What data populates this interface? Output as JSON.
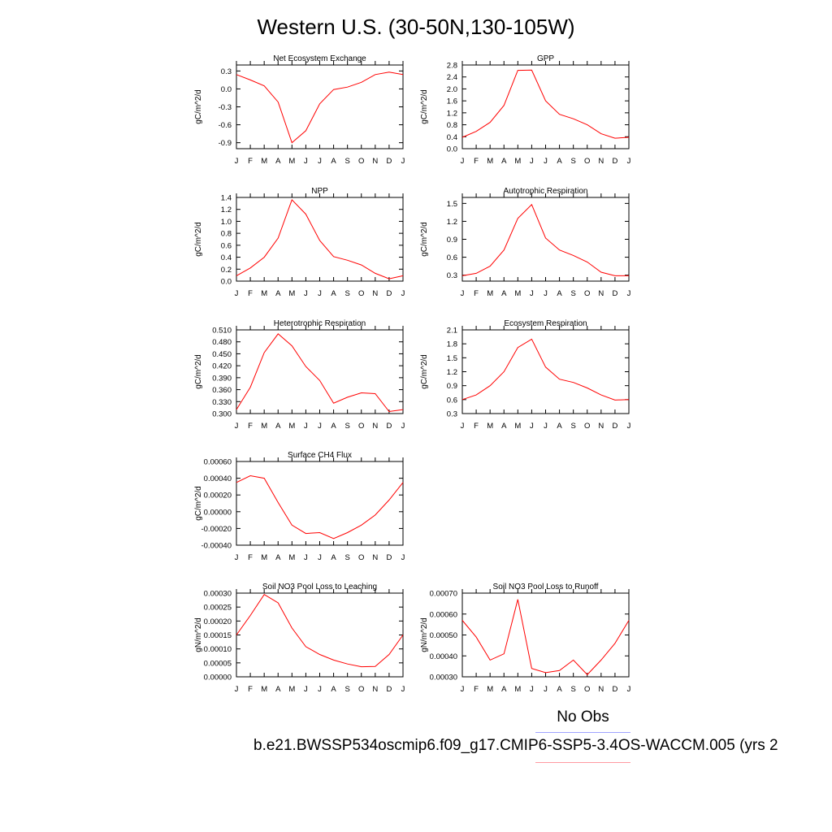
{
  "title": "Western U.S. (30-50N,130-105W)",
  "legend": {
    "obs_label": "No Obs",
    "case_label": "b.e21.BWSSP534oscmip6.f09_g17.CMIP6-SSP5-3.4OS-WACCM.005 (yrs 2",
    "obs_color": "#9fa4ff",
    "case_color": "#ff9aa0"
  },
  "months": [
    "J",
    "F",
    "M",
    "A",
    "M",
    "J",
    "J",
    "A",
    "S",
    "O",
    "N",
    "D",
    "J"
  ],
  "chart_data": [
    {
      "type": "line",
      "title": "Net Ecosystem Exchange",
      "ylabel": "gC/m^2/d",
      "ylim": [
        -1.0,
        0.4
      ],
      "yticks": [
        "0.3",
        "0.0",
        "-0.3",
        "-0.6",
        "-0.9"
      ],
      "ytick_values": [
        0.3,
        0.0,
        -0.3,
        -0.6,
        -0.9
      ],
      "color": "#ff0000",
      "values": [
        0.24,
        0.15,
        0.05,
        -0.22,
        -0.9,
        -0.7,
        -0.25,
        -0.01,
        0.03,
        0.11,
        0.24,
        0.28,
        0.24
      ]
    },
    {
      "type": "line",
      "title": "GPP",
      "ylabel": "gC/m^2/d",
      "ylim": [
        0.0,
        2.8
      ],
      "yticks": [
        "2.8",
        "2.4",
        "2.0",
        "1.6",
        "1.2",
        "0.8",
        "0.4",
        "0.0"
      ],
      "ytick_values": [
        2.8,
        2.4,
        2.0,
        1.6,
        1.2,
        0.8,
        0.4,
        0.0
      ],
      "color": "#ff0000",
      "values": [
        0.38,
        0.58,
        0.88,
        1.45,
        2.62,
        2.63,
        1.6,
        1.15,
        1.0,
        0.8,
        0.5,
        0.35,
        0.38
      ]
    },
    {
      "type": "line",
      "title": "NPP",
      "ylabel": "gC/m^2/d",
      "ylim": [
        0.0,
        1.4
      ],
      "yticks": [
        "1.4",
        "1.2",
        "1.0",
        "0.8",
        "0.6",
        "0.4",
        "0.2",
        "0.0"
      ],
      "ytick_values": [
        1.4,
        1.2,
        1.0,
        0.8,
        0.6,
        0.4,
        0.2,
        0.0
      ],
      "color": "#ff0000",
      "values": [
        0.09,
        0.22,
        0.4,
        0.72,
        1.36,
        1.12,
        0.68,
        0.41,
        0.35,
        0.27,
        0.13,
        0.04,
        0.09
      ]
    },
    {
      "type": "line",
      "title": "Autotrophic Respiration",
      "ylabel": "gC/m^2/d",
      "ylim": [
        0.2,
        1.6
      ],
      "yticks": [
        "1.5",
        "1.2",
        "0.9",
        "0.6",
        "0.3"
      ],
      "ytick_values": [
        1.5,
        1.2,
        0.9,
        0.6,
        0.3
      ],
      "color": "#ff0000",
      "values": [
        0.29,
        0.33,
        0.45,
        0.72,
        1.25,
        1.48,
        0.92,
        0.72,
        0.63,
        0.52,
        0.35,
        0.29,
        0.29
      ]
    },
    {
      "type": "line",
      "title": "Heterotrophic Respiration",
      "ylabel": "gC/m^2/d",
      "ylim": [
        0.3,
        0.51
      ],
      "yticks": [
        "0.510",
        "0.480",
        "0.450",
        "0.420",
        "0.390",
        "0.360",
        "0.330",
        "0.300"
      ],
      "ytick_values": [
        0.51,
        0.48,
        0.45,
        0.42,
        0.39,
        0.36,
        0.33,
        0.3
      ],
      "color": "#ff0000",
      "values": [
        0.31,
        0.366,
        0.453,
        0.5,
        0.47,
        0.418,
        0.383,
        0.326,
        0.341,
        0.352,
        0.35,
        0.305,
        0.31
      ]
    },
    {
      "type": "line",
      "title": "Ecosystem Respiration",
      "ylabel": "gC/m^2/d",
      "ylim": [
        0.3,
        2.1
      ],
      "yticks": [
        "2.1",
        "1.8",
        "1.5",
        "1.2",
        "0.9",
        "0.6",
        "0.3"
      ],
      "ytick_values": [
        2.1,
        1.8,
        1.5,
        1.2,
        0.9,
        0.6,
        0.3
      ],
      "color": "#ff0000",
      "values": [
        0.6,
        0.7,
        0.9,
        1.2,
        1.72,
        1.9,
        1.3,
        1.04,
        0.97,
        0.85,
        0.7,
        0.59,
        0.6
      ]
    },
    {
      "type": "line",
      "title": "Surface CH4 Flux",
      "ylabel": "gC/m^2/d",
      "ylim": [
        -0.0004,
        0.0006
      ],
      "yticks": [
        "0.00060",
        "0.00040",
        "0.00020",
        "0.00000",
        "-0.00020",
        "-0.00040"
      ],
      "ytick_values": [
        0.0006,
        0.0004,
        0.0002,
        0.0,
        -0.0002,
        -0.0004
      ],
      "color": "#ff0000",
      "values": [
        0.00035,
        0.00043,
        0.0004,
        0.00011,
        -0.00016,
        -0.00026,
        -0.00025,
        -0.00032,
        -0.00025,
        -0.00016,
        -4e-05,
        0.00014,
        0.00035
      ]
    },
    {
      "type": "line",
      "title": "Soil NO3 Pool Loss to Leaching",
      "ylabel": "gN/m^2/d",
      "ylim": [
        0.0,
        0.0003
      ],
      "yticks": [
        "0.00030",
        "0.00025",
        "0.00020",
        "0.00015",
        "0.00010",
        "0.00005",
        "0.00000"
      ],
      "ytick_values": [
        0.0003,
        0.00025,
        0.0002,
        0.00015,
        0.0001,
        5e-05,
        0.0
      ],
      "color": "#ff0000",
      "values": [
        0.00015,
        0.00022,
        0.000295,
        0.000265,
        0.000175,
        0.000108,
        8e-05,
        6e-05,
        4.6e-05,
        3.6e-05,
        3.7e-05,
        8e-05,
        0.00015
      ]
    },
    {
      "type": "line",
      "title": "Soil NO3 Pool Loss to Runoff",
      "ylabel": "gN/m^2/d",
      "ylim": [
        0.0003,
        0.0007
      ],
      "yticks": [
        "0.00070",
        "0.00060",
        "0.00050",
        "0.00040",
        "0.00030"
      ],
      "ytick_values": [
        0.0007,
        0.0006,
        0.0005,
        0.0004,
        0.0003
      ],
      "color": "#ff0000",
      "values": [
        0.00057,
        0.00049,
        0.00038,
        0.00041,
        0.00067,
        0.00034,
        0.00032,
        0.00033,
        0.00038,
        0.00031,
        0.00038,
        0.00046,
        0.00057
      ]
    }
  ]
}
